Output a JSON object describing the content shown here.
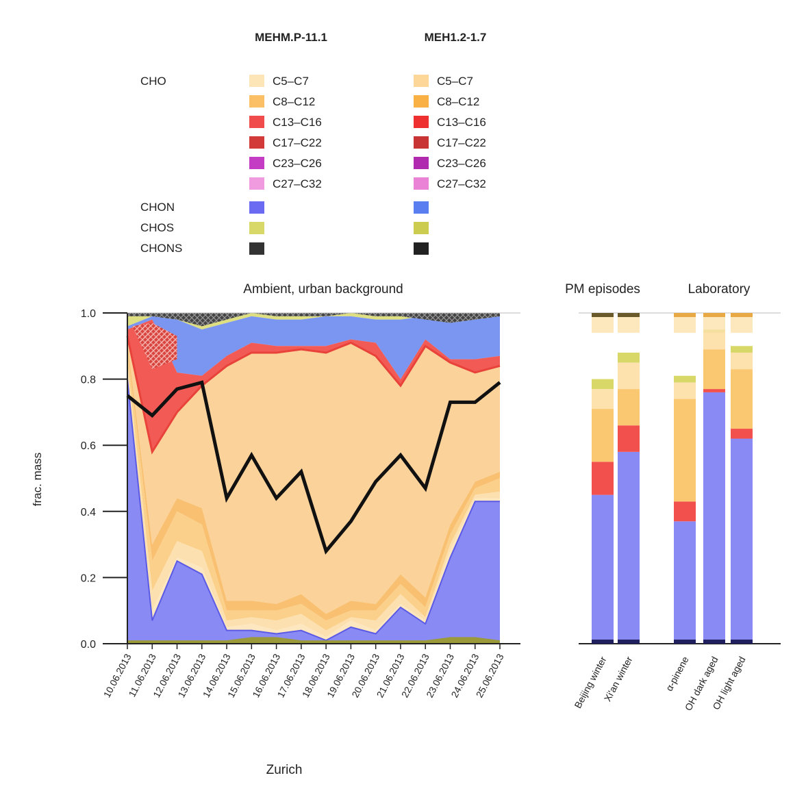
{
  "legend": {
    "col_headers": [
      "MEHM.P-11.1",
      "MEH1.2-1.7"
    ],
    "groups": [
      {
        "label": "CHO",
        "classes": [
          "C5–C7",
          "C8–C12",
          "C13–C16",
          "C17–C22",
          "C23–C26",
          "C27–C32"
        ]
      },
      {
        "label": "CHON",
        "classes": [
          ""
        ]
      },
      {
        "label": "CHOS",
        "classes": [
          ""
        ]
      },
      {
        "label": "CHONS",
        "classes": [
          ""
        ]
      }
    ],
    "colors_light": [
      "#fde5b8",
      "#fbc066",
      "#f04c4c",
      "#d23a3a",
      "#c43bc4",
      "#f09ae0",
      "#6a6af2",
      "#d8d868",
      "#333333"
    ],
    "colors_dark": [
      "#fdd79a",
      "#f9b146",
      "#ee3030",
      "#c83434",
      "#b02ab0",
      "#ea82d6",
      "#5a7ef0",
      "#cccc50",
      "#222222"
    ]
  },
  "chart_data": [
    {
      "type": "area",
      "title": "Ambient, urban background",
      "xlabel": "Zurich",
      "ylabel": "frac. mass",
      "ylim": [
        0,
        1
      ],
      "yticks": [
        "0.0",
        "0.2",
        "0.4",
        "0.6",
        "0.8",
        "1.0"
      ],
      "categories": [
        "10.06.2013",
        "11.06.2013",
        "12.06.2013",
        "13.06.2013",
        "14.06.2013",
        "15.06.2013",
        "16.06.2013",
        "17.06.2013",
        "18.06.2013",
        "19.06.2013",
        "20.06.2013",
        "21.06.2013",
        "22.06.2013",
        "23.06.2013",
        "24.06.2013",
        "25.06.2013"
      ],
      "series_order": [
        "CHON",
        "CHO C27–C32",
        "CHO C23–C26",
        "CHO C17–C22",
        "CHO C13–C16",
        "CHO C8–C12",
        "CHO C5–C7",
        "CHOS",
        "CHONS"
      ],
      "stack_boundaries": [
        [
          0.8,
          0.07,
          0.25,
          0.21,
          0.04,
          0.04,
          0.03,
          0.04,
          0.01,
          0.05,
          0.03,
          0.11,
          0.06,
          0.26,
          0.43,
          0.43
        ],
        [
          0.8,
          0.1,
          0.26,
          0.23,
          0.05,
          0.06,
          0.04,
          0.06,
          0.02,
          0.07,
          0.04,
          0.12,
          0.07,
          0.28,
          0.44,
          0.44
        ],
        [
          0.85,
          0.16,
          0.31,
          0.28,
          0.07,
          0.08,
          0.07,
          0.09,
          0.04,
          0.08,
          0.07,
          0.15,
          0.08,
          0.3,
          0.45,
          0.46
        ],
        [
          0.89,
          0.25,
          0.4,
          0.36,
          0.1,
          0.1,
          0.1,
          0.12,
          0.07,
          0.1,
          0.1,
          0.18,
          0.11,
          0.33,
          0.47,
          0.5
        ],
        [
          0.91,
          0.3,
          0.44,
          0.41,
          0.13,
          0.13,
          0.12,
          0.15,
          0.09,
          0.13,
          0.12,
          0.21,
          0.14,
          0.36,
          0.49,
          0.52
        ],
        [
          0.93,
          0.58,
          0.7,
          0.78,
          0.84,
          0.88,
          0.88,
          0.89,
          0.88,
          0.91,
          0.87,
          0.78,
          0.9,
          0.85,
          0.82,
          0.84
        ],
        [
          0.95,
          0.98,
          0.82,
          0.81,
          0.87,
          0.91,
          0.9,
          0.9,
          0.9,
          0.92,
          0.91,
          0.8,
          0.92,
          0.86,
          0.86,
          0.87
        ],
        [
          0.96,
          0.99,
          0.98,
          0.95,
          0.97,
          0.99,
          0.98,
          0.98,
          0.99,
          0.99,
          0.98,
          0.98,
          0.99,
          0.97,
          0.98,
          0.99
        ],
        [
          1.0,
          1.0,
          1.0,
          1.0,
          1.0,
          1.0,
          1.0,
          1.0,
          1.0,
          1.0,
          1.0,
          1.0,
          1.0,
          1.0,
          1.0,
          1.0
        ]
      ],
      "bottom_band_CHOS": [
        0.01,
        0.01,
        0.01,
        0.01,
        0.01,
        0.02,
        0.02,
        0.01,
        0.01,
        0.01,
        0.01,
        0.01,
        0.01,
        0.02,
        0.02,
        0.01
      ],
      "black_line": [
        0.75,
        0.69,
        0.77,
        0.79,
        0.44,
        0.57,
        0.44,
        0.52,
        0.28,
        0.37,
        0.49,
        0.57,
        0.47,
        0.73,
        0.73,
        0.79
      ]
    },
    {
      "type": "bar",
      "title": "PM episodes",
      "categories": [
        "Beijing winter",
        "Xi'an winter"
      ],
      "series": [
        {
          "name": "CHON",
          "values": [
            0.45,
            0.58
          ]
        },
        {
          "name": "CHO C13–C22",
          "values": [
            0.1,
            0.08
          ]
        },
        {
          "name": "CHO C5–C12",
          "values": [
            0.16,
            0.11
          ]
        },
        {
          "name": "upper CHO C5–C12",
          "values": [
            0.06,
            0.08
          ]
        },
        {
          "name": "CHOS + CHONS",
          "values": [
            0.03,
            0.03
          ]
        }
      ]
    },
    {
      "type": "bar",
      "title": "Laboratory",
      "categories": [
        "α-pinene",
        "OH dark aged",
        "OH light aged"
      ],
      "series": [
        {
          "name": "CHON",
          "values": [
            0.37,
            0.76,
            0.62
          ]
        },
        {
          "name": "CHO C13–C22",
          "values": [
            0.06,
            0.01,
            0.03
          ]
        },
        {
          "name": "CHO C5–C12",
          "values": [
            0.31,
            0.12,
            0.18
          ]
        },
        {
          "name": "upper CHO C5–C12",
          "values": [
            0.05,
            0.05,
            0.05
          ]
        },
        {
          "name": "CHOS + CHONS",
          "values": [
            0.02,
            0.01,
            0.02
          ]
        }
      ]
    }
  ]
}
